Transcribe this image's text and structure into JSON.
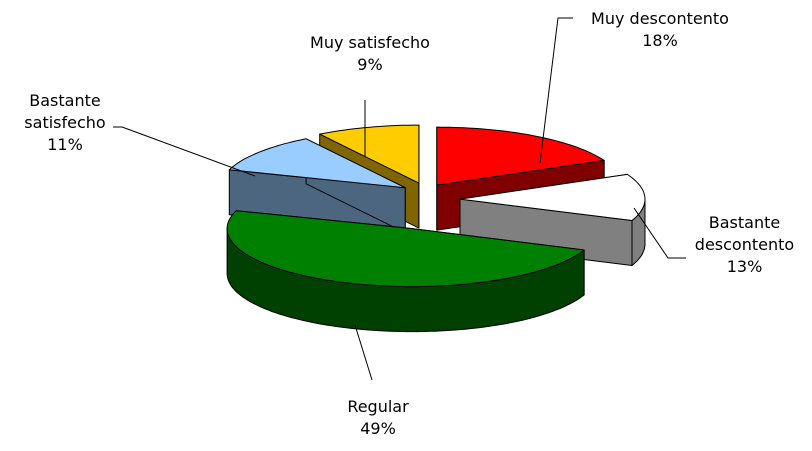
{
  "chart_data": {
    "type": "pie3d",
    "categories": [
      "Muy descontento",
      "Bastante descontento",
      "Regular",
      "Bastante satisfecho",
      "Muy satisfecho"
    ],
    "values": [
      18,
      13,
      49,
      11,
      9
    ],
    "value_labels": [
      "18%",
      "13%",
      "49%",
      "11%",
      "9%"
    ],
    "colors": [
      "#ff0000",
      "#ffffff",
      "#008000",
      "#99ccff",
      "#ffcc00"
    ],
    "side_colors": [
      "#800000",
      "#808080",
      "#004000",
      "#4d6680",
      "#806600"
    ]
  }
}
